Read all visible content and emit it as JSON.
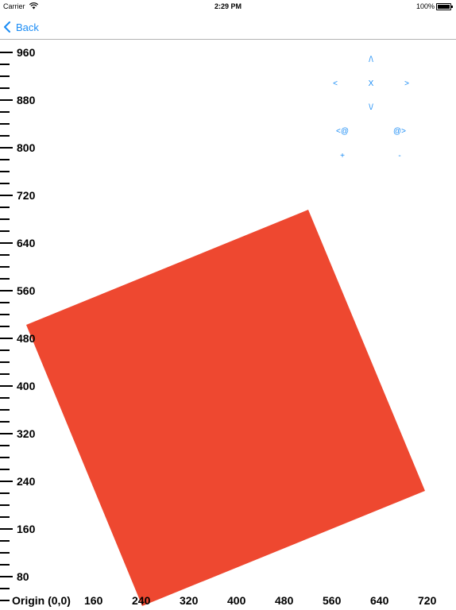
{
  "status_bar": {
    "carrier": "Carrier",
    "time": "2:29 PM",
    "battery": "100%",
    "wifi_icon": "wifi-icon",
    "battery_icon": "battery-icon"
  },
  "nav": {
    "back_label": "Back",
    "back_icon": "chevron-left-icon"
  },
  "axes": {
    "origin_label": "Origin (0,0)",
    "y_labels": [
      "960",
      "880",
      "800",
      "720",
      "640",
      "560",
      "480",
      "400",
      "320",
      "240",
      "160",
      "80"
    ],
    "x_labels": [
      "160",
      "240",
      "320",
      "400",
      "480",
      "560",
      "640",
      "720"
    ]
  },
  "controls": {
    "up": "/\\",
    "left": "<",
    "close": "X",
    "right": ">",
    "down": "\\/",
    "rotate_left": "<@",
    "rotate_right": "@>",
    "zoom_in": "+",
    "zoom_out": "-"
  },
  "colors": {
    "accent": "#1a8cf5",
    "shape_fill": "#ee4830"
  }
}
